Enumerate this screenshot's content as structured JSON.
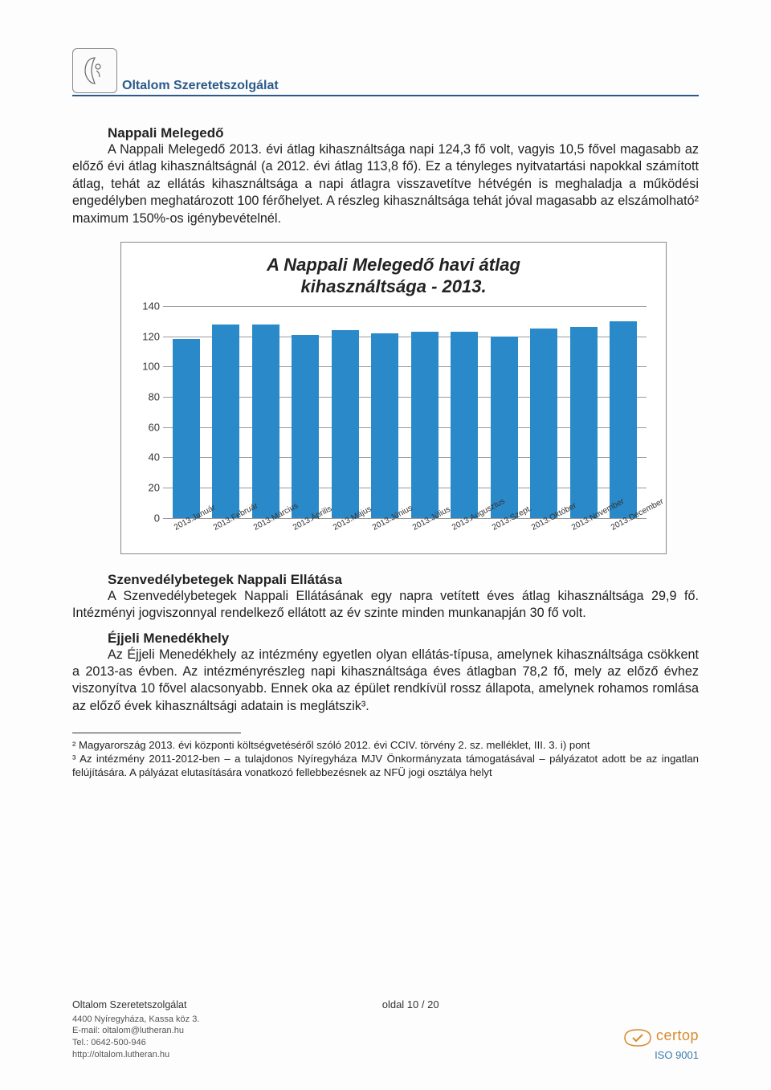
{
  "header": {
    "org_name": "Oltalom Szeretetszolgálat"
  },
  "section1": {
    "title": "Nappali Melegedő",
    "body": "A Nappali Melegedő 2013. évi átlag kihasználtsága napi 124,3 fő volt, vagyis 10,5 fővel magasabb az előző évi átlag kihasználtságnál (a 2012. évi átlag 113,8 fő). Ez a tényleges nyitvatartási napokkal számított átlag, tehát az ellátás kihasználtsága a napi átlagra visszavetítve hétvégén is meghaladja a működési engedélyben meghatározott 100 férőhelyet. A részleg kihasználtsága tehát jóval magasabb az elszámolható² maximum 150%-os igénybevételnél."
  },
  "chart": {
    "title_line1": "A Nappali Melegedő havi átlag",
    "title_line2": "kihasználtsága - 2013.",
    "ylim": [
      0,
      140
    ],
    "ytick_step": 20,
    "yticks": [
      0,
      20,
      40,
      60,
      80,
      100,
      120,
      140
    ],
    "bar_color": "#2a8ac9",
    "grid_color": "#9a9a9a",
    "categories": [
      "2013.Január",
      "2013.Február",
      "2013.Március",
      "2013.Április",
      "2013.Május",
      "2013.Június",
      "2013.Július",
      "2013.Augusztus",
      "2013.Szept.",
      "2013.Október",
      "2013.November",
      "2013.December"
    ],
    "values": [
      118,
      128,
      128,
      121,
      124,
      122,
      123,
      123,
      120,
      125,
      126,
      130
    ]
  },
  "section2": {
    "title": "Szenvedélybetegek Nappali Ellátása",
    "body": "A Szenvedélybetegek Nappali Ellátásának egy napra vetített éves átlag kihasználtsága 29,9 fő. Intézményi jogviszonnyal rendelkező ellátott az év szinte minden munkanapján 30 fő volt."
  },
  "section3": {
    "title": "Éjjeli Menedékhely",
    "body": "Az Éjjeli Menedékhely az intézmény egyetlen olyan ellátás-típusa, amelynek kihasználtsága csökkent a 2013-as évben. Az intézményrészleg napi kihasználtsága éves átlagban 78,2 fő, mely az előző évhez viszonyítva 10 fővel alacsonyabb. Ennek oka az épület rendkívül rossz állapota, amelynek rohamos romlása az előző évek kihasználtsági adatain is meglátszik³."
  },
  "footnotes": {
    "fn2": "² Magyarország 2013. évi központi költségvetéséről szóló 2012. évi CCIV. törvény 2. sz. melléklet, III. 3. i) pont",
    "fn3": "³ Az intézmény 2011-2012-ben – a tulajdonos Nyíregyháza MJV Önkormányzata támogatásával – pályázatot adott be az ingatlan felújítására. A pályázat elutasítására vonatkozó fellebbezésnek az NFÜ jogi osztálya helyt"
  },
  "footer": {
    "org": "Oltalom Szeretetszolgálat",
    "addr": "4400 Nyíregyháza, Kassa köz 3.",
    "email": "E-mail: oltalom@lutheran.hu",
    "tel": "Tel.: 0642-500-946",
    "url": "http://oltalom.lutheran.hu",
    "page": "oldal 10 / 20",
    "certop": "certop",
    "iso": "ISO 9001"
  }
}
